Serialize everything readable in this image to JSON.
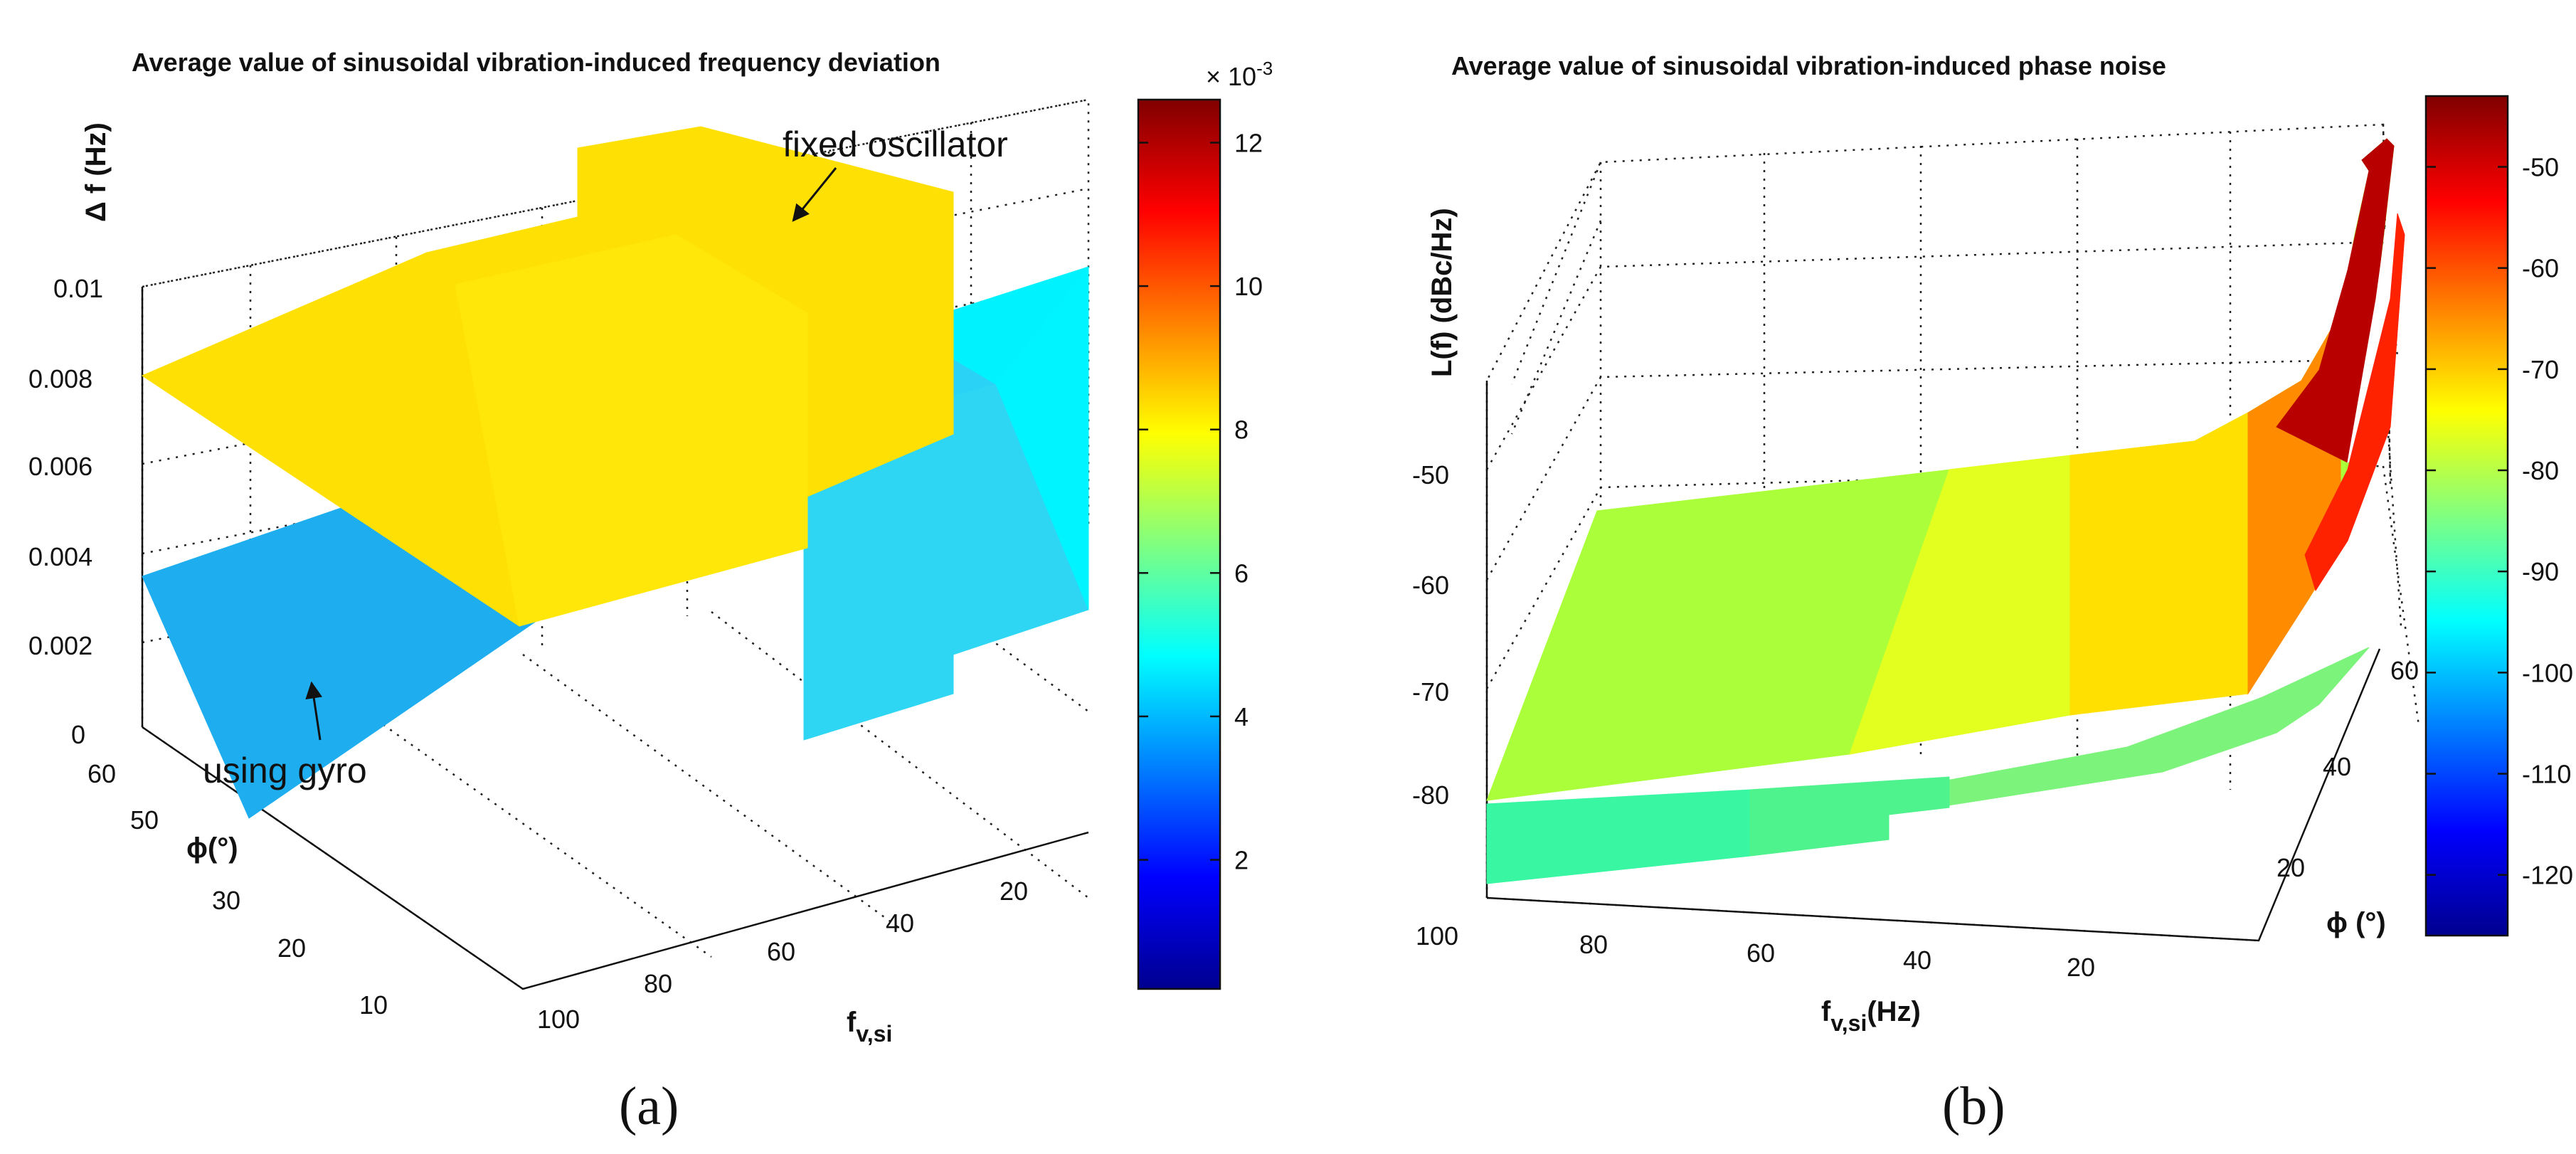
{
  "colormap": [
    "#00008f",
    "#0000ff",
    "#0080ff",
    "#00ffff",
    "#80ff80",
    "#ffff00",
    "#ff8000",
    "#ff0000",
    "#800000"
  ],
  "chart_data": [
    {
      "panel": "(a)",
      "type": "surface3d",
      "title": "Average value of sinusoidal vibration-induced frequency deviation",
      "xlabel": "f",
      "xlabel_sub": "v,si",
      "ylabel": "ϕ(°)",
      "zlabel": "Δ f (Hz)",
      "xticks": [
        "20",
        "40",
        "60",
        "80",
        "100"
      ],
      "yticks": [
        "10",
        "20",
        "30",
        "40",
        "50",
        "60"
      ],
      "zticks": [
        "0",
        "0.002",
        "0.004",
        "0.006",
        "0.008",
        "0.01"
      ],
      "xlim": [
        0,
        100
      ],
      "ylim": [
        0,
        60
      ],
      "zlim": [
        0,
        0.012
      ],
      "colorbar": {
        "ticks": [
          "2",
          "4",
          "6",
          "8",
          "10",
          "12"
        ],
        "exponent": "× 10",
        "exponent_power": "-3",
        "range": [
          0.0002,
          0.0126
        ]
      },
      "series": [
        {
          "name": "fixed oscillator",
          "f": [
            0,
            52,
            52,
            73,
            73,
            100
          ],
          "values": [
            0.0126,
            0.0126,
            0.0109,
            0.0109,
            0.0087,
            0.0087
          ]
        },
        {
          "name": "using gyro",
          "f": [
            0,
            52,
            52,
            73,
            73,
            100
          ],
          "values": [
            0.0052,
            0.0052,
            0.0044,
            0.0044,
            0.0037,
            0.0037
          ]
        }
      ],
      "annotations": [
        "fixed oscillator",
        "using gyro"
      ]
    },
    {
      "panel": "(b)",
      "type": "surface3d",
      "title": "Average value of sinusoidal vibration-induced phase noise",
      "xlabel": "f",
      "xlabel_sub": "v,si",
      "xlabel_suffix": "(Hz)",
      "ylabel": "ϕ (°)",
      "zlabel": "L(f) (dBc/Hz)",
      "xticks": [
        "20",
        "40",
        "60",
        "80",
        "100"
      ],
      "yticks": [
        "20",
        "40",
        "60"
      ],
      "zticks": [
        "-50",
        "-60",
        "-70",
        "-80"
      ],
      "xlim": [
        0,
        100
      ],
      "ylim": [
        0,
        60
      ],
      "zlim": [
        -90,
        -42
      ],
      "colorbar": {
        "ticks": [
          "-50",
          "-60",
          "-70",
          "-80",
          "-90",
          "-100",
          "-110",
          "-120"
        ],
        "range": [
          -126,
          -43
        ]
      },
      "series": [
        {
          "name": "fixed oscillator",
          "f": [
            1,
            2,
            3,
            5,
            8,
            10,
            15,
            20,
            30,
            40,
            50,
            60,
            70,
            80,
            100
          ],
          "values": [
            -43,
            -52,
            -58,
            -64,
            -68,
            -70,
            -73,
            -74.5,
            -76.5,
            -77.5,
            -78,
            -78.5,
            -79,
            -79.5,
            -80
          ]
        },
        {
          "name": "using gyro",
          "f": [
            1,
            2,
            3,
            5,
            8,
            10,
            15,
            20,
            30,
            40,
            50,
            60,
            70,
            80,
            100
          ],
          "values": [
            -46,
            -55,
            -61,
            -67,
            -71,
            -73,
            -76,
            -77.5,
            -79.5,
            -80.5,
            -81,
            -86.5,
            -87,
            -87.5,
            -88
          ]
        }
      ]
    }
  ]
}
